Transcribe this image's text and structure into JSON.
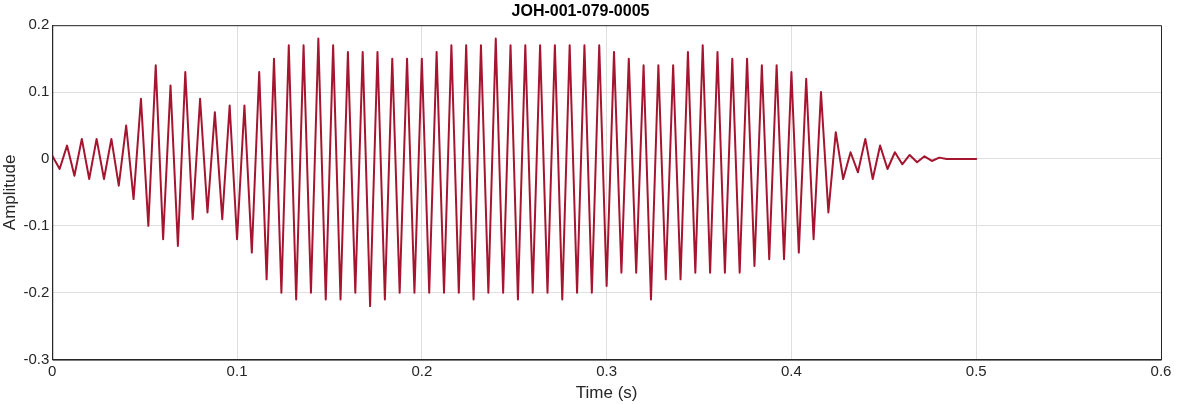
{
  "chart_data": {
    "type": "line",
    "title": "JOH-001-079-0005",
    "xlabel": "Time (s)",
    "ylabel": "Amplitude",
    "x": [
      0,
      0.004,
      0.008,
      0.012,
      0.016,
      0.02,
      0.024,
      0.028,
      0.032,
      0.036,
      0.04,
      0.044,
      0.048,
      0.052,
      0.056,
      0.06,
      0.064,
      0.068,
      0.072,
      0.076,
      0.08,
      0.084,
      0.088,
      0.092,
      0.096,
      0.1,
      0.104,
      0.108,
      0.112,
      0.116,
      0.12,
      0.124,
      0.128,
      0.132,
      0.136,
      0.14,
      0.144,
      0.148,
      0.152,
      0.156,
      0.16,
      0.164,
      0.168,
      0.172,
      0.176,
      0.18,
      0.184,
      0.188,
      0.192,
      0.196,
      0.2,
      0.204,
      0.208,
      0.212,
      0.216,
      0.22,
      0.224,
      0.228,
      0.232,
      0.236,
      0.24,
      0.244,
      0.248,
      0.252,
      0.256,
      0.26,
      0.264,
      0.268,
      0.272,
      0.276,
      0.28,
      0.284,
      0.288,
      0.292,
      0.296,
      0.3,
      0.304,
      0.308,
      0.312,
      0.316,
      0.32,
      0.324,
      0.328,
      0.332,
      0.336,
      0.34,
      0.344,
      0.348,
      0.352,
      0.356,
      0.36,
      0.364,
      0.368,
      0.372,
      0.376,
      0.38,
      0.384,
      0.388,
      0.392,
      0.396,
      0.4,
      0.404,
      0.408,
      0.412,
      0.416,
      0.42,
      0.424,
      0.428,
      0.432,
      0.436,
      0.44,
      0.444,
      0.448,
      0.452,
      0.456,
      0.46,
      0.464,
      0.468,
      0.472,
      0.476,
      0.48,
      0.484,
      0.5
    ],
    "series": [
      {
        "color": "#a51530",
        "values": [
          0.005,
          -0.015,
          0.02,
          -0.025,
          0.03,
          -0.03,
          0.03,
          -0.03,
          0.03,
          -0.04,
          0.05,
          -0.06,
          0.09,
          -0.1,
          0.14,
          -0.12,
          0.11,
          -0.13,
          0.13,
          -0.09,
          0.09,
          -0.08,
          0.07,
          -0.09,
          0.08,
          -0.12,
          0.08,
          -0.14,
          0.13,
          -0.18,
          0.15,
          -0.2,
          0.17,
          -0.21,
          0.17,
          -0.2,
          0.18,
          -0.21,
          0.17,
          -0.21,
          0.16,
          -0.2,
          0.16,
          -0.22,
          0.16,
          -0.21,
          0.15,
          -0.2,
          0.15,
          -0.2,
          0.15,
          -0.2,
          0.16,
          -0.2,
          0.17,
          -0.2,
          0.17,
          -0.21,
          0.17,
          -0.2,
          0.18,
          -0.2,
          0.17,
          -0.21,
          0.17,
          -0.2,
          0.17,
          -0.2,
          0.17,
          -0.21,
          0.17,
          -0.2,
          0.17,
          -0.2,
          0.17,
          -0.19,
          0.16,
          -0.17,
          0.15,
          -0.17,
          0.14,
          -0.21,
          0.14,
          -0.18,
          0.14,
          -0.18,
          0.16,
          -0.17,
          0.17,
          -0.17,
          0.16,
          -0.17,
          0.15,
          -0.17,
          0.15,
          -0.16,
          0.14,
          -0.15,
          0.14,
          -0.15,
          0.13,
          -0.14,
          0.12,
          -0.12,
          0.1,
          -0.08,
          0.04,
          -0.03,
          0.01,
          -0.02,
          0.03,
          -0.03,
          0.02,
          -0.015,
          0.01,
          -0.008,
          0.006,
          -0.005,
          0.004,
          -0.003,
          0.002,
          0,
          0
        ]
      }
    ],
    "xlim": [
      0,
      0.6
    ],
    "xticks": [
      0,
      0.1,
      0.2,
      0.3,
      0.4,
      0.5,
      0.6
    ],
    "ylim": [
      -0.3,
      0.2
    ],
    "yticks": [
      -0.3,
      -0.2,
      -0.1,
      0,
      0.1,
      0.2
    ],
    "grid": true,
    "legend": false,
    "marker": "none",
    "line_style": "solid"
  }
}
